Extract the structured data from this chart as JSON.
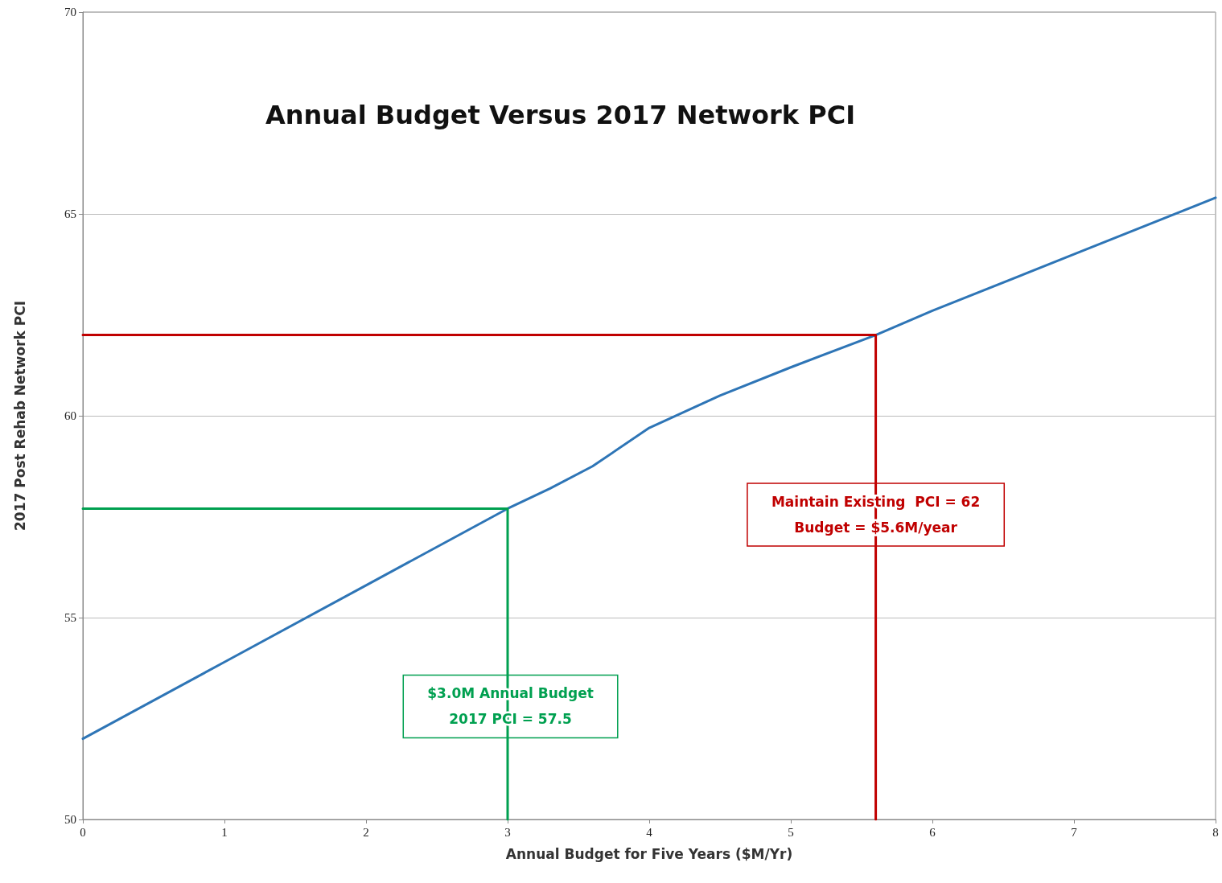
{
  "chart_data": {
    "type": "line",
    "title": "Annual Budget Versus 2017 Network PCI",
    "xlabel": "Annual Budget for Five Years ($M/Yr)",
    "ylabel": "2017 Post Rehab Network PCI",
    "series": [
      {
        "color": "#2e75b6",
        "x": [
          0,
          1,
          2,
          3,
          3.3,
          3.6,
          4,
          4.5,
          5,
          5.6,
          6,
          7,
          8
        ],
        "values": [
          52,
          53.9,
          55.8,
          57.7,
          58.2,
          58.75,
          59.7,
          60.5,
          61.2,
          62,
          62.6,
          64,
          65.4
        ]
      },
      {
        "color": "#c00000",
        "x": [
          0,
          5.6,
          5.6
        ],
        "values": [
          62,
          62,
          50
        ]
      },
      {
        "color": "#00a050",
        "x": [
          0,
          3,
          3
        ],
        "values": [
          57.7,
          57.7,
          50
        ]
      }
    ],
    "annotations": [
      {
        "text": "Maintain Existing  PCI = 62\nBudget = $5.6M/year",
        "x": 5.6,
        "y": 57.55
      },
      {
        "text": "$3.0M Annual Budget\n2017 PCI = 57.5",
        "x": 3.02,
        "y": 52.8
      }
    ],
    "xlim": [
      0,
      8
    ],
    "xticks": [
      0,
      1,
      2,
      3,
      4,
      5,
      6,
      7,
      8
    ],
    "ylim": [
      50,
      70
    ],
    "yticks": [
      50,
      55,
      60,
      65,
      70
    ],
    "grid": "y",
    "marker": "none",
    "line_style": "solid"
  }
}
